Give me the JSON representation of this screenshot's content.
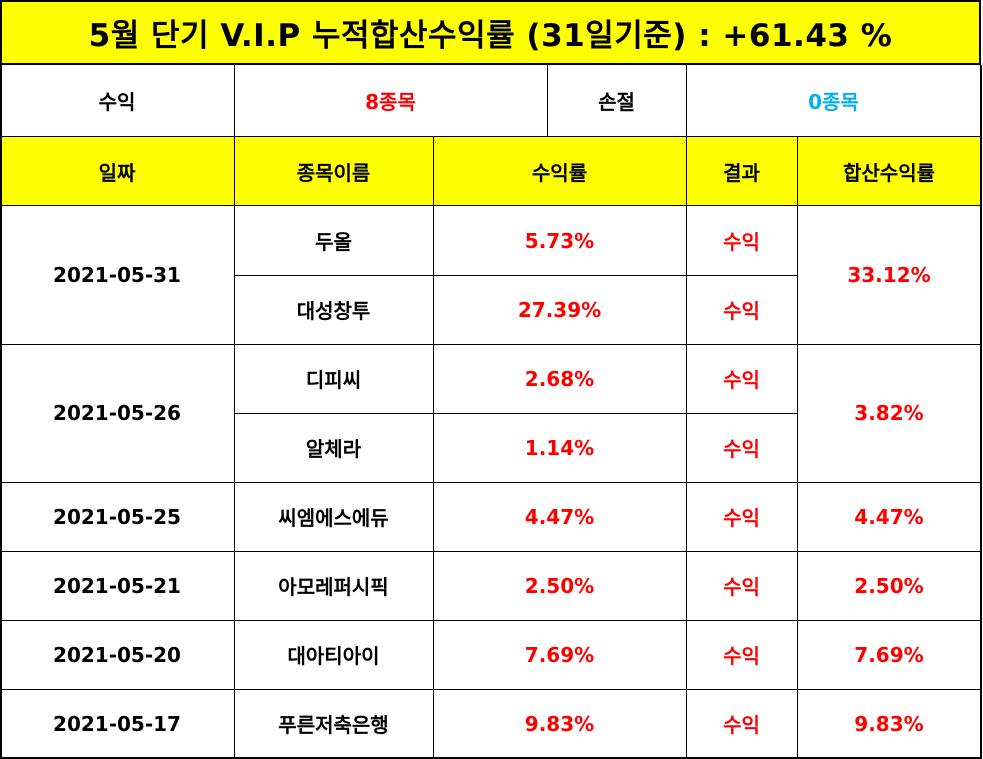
{
  "title": "5월 단기 V.I.P 누적합산수익률 (31일기준) : +61.43 %",
  "summary": {
    "profit_label": "수익",
    "profit_value": "8종목",
    "loss_label": "손절",
    "loss_value": "0종목"
  },
  "headers": [
    "일짜",
    "종목이름",
    "수익률",
    "결과",
    "합산수익률"
  ],
  "groups": [
    {
      "date": "2021-05-31",
      "total": "33.12%",
      "items": [
        {
          "name": "두올",
          "rate": "5.73%",
          "result": "수익"
        },
        {
          "name": "대성창투",
          "rate": "27.39%",
          "result": "수익"
        }
      ]
    },
    {
      "date": "2021-05-26",
      "total": "3.82%",
      "items": [
        {
          "name": "디피씨",
          "rate": "2.68%",
          "result": "수익"
        },
        {
          "name": "알체라",
          "rate": "1.14%",
          "result": "수익"
        }
      ]
    },
    {
      "date": "2021-05-25",
      "total": "4.47%",
      "items": [
        {
          "name": "씨엠에스에듀",
          "rate": "4.47%",
          "result": "수익"
        }
      ]
    },
    {
      "date": "2021-05-21",
      "total": "2.50%",
      "items": [
        {
          "name": "아모레퍼시픽",
          "rate": "2.50%",
          "result": "수익"
        }
      ]
    },
    {
      "date": "2021-05-20",
      "total": "7.69%",
      "items": [
        {
          "name": "대아티아이",
          "rate": "7.69%",
          "result": "수익"
        }
      ]
    },
    {
      "date": "2021-05-17",
      "total": "9.83%",
      "items": [
        {
          "name": "푸른저축은행",
          "rate": "9.83%",
          "result": "수익"
        }
      ]
    }
  ],
  "colors": {
    "header_bg": "#ffff00",
    "profit": "#ff0000",
    "loss": "#00b0f0"
  }
}
